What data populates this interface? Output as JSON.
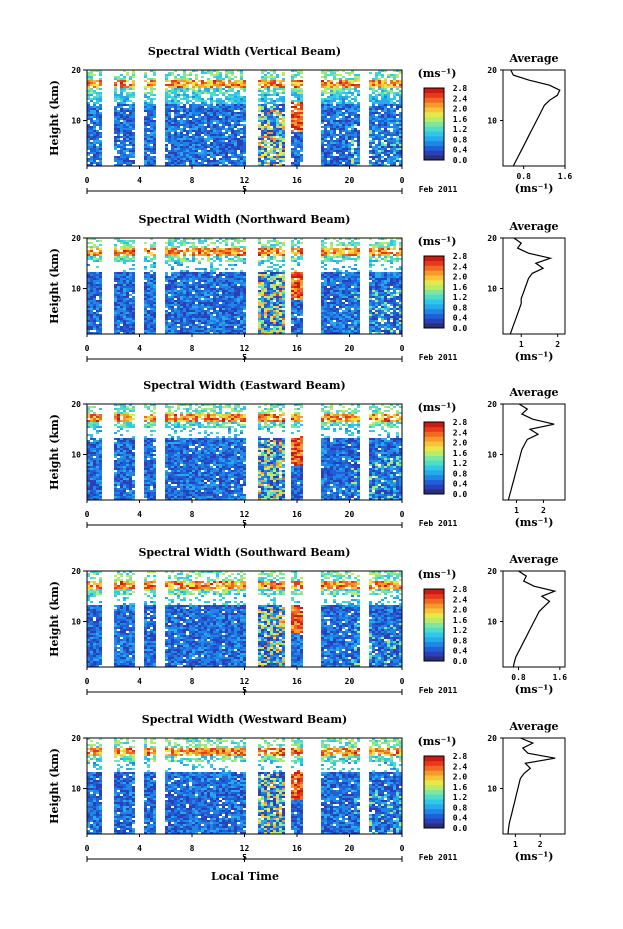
{
  "chart_data": {
    "type": "heatmap",
    "colorbar": {
      "unit": "(ms⁻¹)",
      "ticks": [
        "2.8",
        "2.4",
        "2.0",
        "1.6",
        "1.2",
        "0.8",
        "0.4",
        "0.0"
      ],
      "colors": [
        "#2a2f7a",
        "#2b3fb8",
        "#1f5fd8",
        "#1f86e6",
        "#27a9ee",
        "#2fc8e8",
        "#4fdcc8",
        "#7fe6a0",
        "#b7ec6a",
        "#e6e84a",
        "#f8c23a",
        "#f79a2c",
        "#f06a22",
        "#e63a1c",
        "#cc1a14"
      ]
    },
    "xlabel": "Local Time",
    "x_ticks": [
      "0",
      "4",
      "8",
      "12",
      "16",
      "20",
      "0"
    ],
    "date_tick": "5",
    "date_label": "Feb 2011",
    "ylabel": "Height (km)",
    "y_ticks": [
      "20",
      "10"
    ],
    "avg_title": "Average",
    "avg_xlabel": "(ms⁻¹)",
    "panels": [
      {
        "title": "Spectral Width (Vertical Beam)",
        "gaps": [
          [
            1.0,
            2.0
          ],
          [
            3.6,
            4.3
          ],
          [
            5.2,
            5.9
          ],
          [
            12.0,
            13.0
          ],
          [
            15.0,
            15.5
          ],
          [
            16.3,
            17.8
          ],
          [
            20.6,
            21.4
          ]
        ],
        "profile_x_ticks": [
          "0.8",
          "1.6"
        ],
        "profile_range": [
          0.4,
          1.6
        ],
        "profile": [
          [
            0.6,
            1
          ],
          [
            0.65,
            2
          ],
          [
            0.7,
            3
          ],
          [
            0.75,
            4
          ],
          [
            0.8,
            5
          ],
          [
            0.85,
            6
          ],
          [
            0.9,
            7
          ],
          [
            0.95,
            8
          ],
          [
            1.0,
            9
          ],
          [
            1.05,
            10
          ],
          [
            1.1,
            11
          ],
          [
            1.15,
            12
          ],
          [
            1.2,
            13
          ],
          [
            1.3,
            14
          ],
          [
            1.45,
            15
          ],
          [
            1.5,
            16
          ],
          [
            1.3,
            17
          ],
          [
            0.9,
            18
          ],
          [
            0.6,
            19
          ],
          [
            0.55,
            20
          ]
        ]
      },
      {
        "title": "Spectral Width (Northward Beam)",
        "gaps": [
          [
            1.0,
            2.0
          ],
          [
            3.6,
            4.3
          ],
          [
            5.2,
            5.9
          ],
          [
            12.0,
            13.0
          ],
          [
            15.0,
            15.5
          ],
          [
            16.3,
            17.8
          ],
          [
            20.6,
            21.4
          ]
        ],
        "profile_x_ticks": [
          "1",
          "2"
        ],
        "profile_range": [
          0.5,
          2.2
        ],
        "profile": [
          [
            0.7,
            1
          ],
          [
            0.75,
            2
          ],
          [
            0.8,
            3
          ],
          [
            0.85,
            4
          ],
          [
            0.9,
            5
          ],
          [
            0.95,
            6
          ],
          [
            1.0,
            7
          ],
          [
            1.0,
            8
          ],
          [
            1.05,
            9
          ],
          [
            1.1,
            10
          ],
          [
            1.15,
            11
          ],
          [
            1.2,
            12
          ],
          [
            1.3,
            13
          ],
          [
            1.6,
            14
          ],
          [
            1.4,
            15
          ],
          [
            1.8,
            16
          ],
          [
            1.2,
            17
          ],
          [
            0.9,
            18
          ],
          [
            1.0,
            19
          ],
          [
            0.8,
            20
          ]
        ]
      },
      {
        "title": "Spectral Width (Eastward Beam)",
        "gaps": [
          [
            1.0,
            2.0
          ],
          [
            3.6,
            4.3
          ],
          [
            5.2,
            5.9
          ],
          [
            12.0,
            13.0
          ],
          [
            15.0,
            15.5
          ],
          [
            16.3,
            17.8
          ],
          [
            20.6,
            21.4
          ]
        ],
        "profile_x_ticks": [
          "1",
          "2"
        ],
        "profile_range": [
          0.5,
          2.8
        ],
        "profile": [
          [
            0.7,
            1
          ],
          [
            0.75,
            2
          ],
          [
            0.8,
            3
          ],
          [
            0.85,
            4
          ],
          [
            0.9,
            5
          ],
          [
            0.95,
            6
          ],
          [
            1.0,
            7
          ],
          [
            1.05,
            8
          ],
          [
            1.1,
            9
          ],
          [
            1.15,
            10
          ],
          [
            1.2,
            11
          ],
          [
            1.3,
            12
          ],
          [
            1.4,
            13
          ],
          [
            1.8,
            14
          ],
          [
            1.5,
            15
          ],
          [
            2.4,
            16
          ],
          [
            1.6,
            17
          ],
          [
            1.2,
            18
          ],
          [
            1.4,
            19
          ],
          [
            1.1,
            20
          ]
        ]
      },
      {
        "title": "Spectral Width (Southward Beam)",
        "gaps": [
          [
            1.0,
            2.0
          ],
          [
            3.6,
            4.3
          ],
          [
            5.2,
            5.9
          ],
          [
            12.0,
            13.0
          ],
          [
            15.0,
            15.5
          ],
          [
            16.3,
            17.8
          ],
          [
            20.6,
            21.4
          ]
        ],
        "profile_x_ticks": [
          "0.8",
          "1.6"
        ],
        "profile_range": [
          0.5,
          1.7
        ],
        "profile": [
          [
            0.7,
            1
          ],
          [
            0.72,
            2
          ],
          [
            0.75,
            3
          ],
          [
            0.8,
            4
          ],
          [
            0.85,
            5
          ],
          [
            0.9,
            6
          ],
          [
            0.95,
            7
          ],
          [
            1.0,
            8
          ],
          [
            1.05,
            9
          ],
          [
            1.1,
            10
          ],
          [
            1.15,
            11
          ],
          [
            1.2,
            12
          ],
          [
            1.3,
            13
          ],
          [
            1.4,
            14
          ],
          [
            1.25,
            15
          ],
          [
            1.5,
            16
          ],
          [
            1.1,
            17
          ],
          [
            0.9,
            18
          ],
          [
            0.95,
            19
          ],
          [
            0.8,
            20
          ]
        ]
      },
      {
        "title": "Spectral Width (Westward Beam)",
        "gaps": [
          [
            1.0,
            2.0
          ],
          [
            3.6,
            4.3
          ],
          [
            5.2,
            5.9
          ],
          [
            12.0,
            13.0
          ],
          [
            15.0,
            15.5
          ],
          [
            16.3,
            17.8
          ],
          [
            20.6,
            21.4
          ]
        ],
        "profile_x_ticks": [
          "1",
          "2"
        ],
        "profile_range": [
          0.5,
          3.0
        ],
        "profile": [
          [
            0.7,
            1
          ],
          [
            0.72,
            2
          ],
          [
            0.75,
            3
          ],
          [
            0.8,
            4
          ],
          [
            0.85,
            5
          ],
          [
            0.9,
            6
          ],
          [
            0.95,
            7
          ],
          [
            1.0,
            8
          ],
          [
            1.05,
            9
          ],
          [
            1.1,
            10
          ],
          [
            1.15,
            11
          ],
          [
            1.2,
            12
          ],
          [
            1.35,
            13
          ],
          [
            1.6,
            14
          ],
          [
            1.4,
            15
          ],
          [
            2.6,
            16
          ],
          [
            1.5,
            17
          ],
          [
            1.3,
            18
          ],
          [
            1.7,
            19
          ],
          [
            1.2,
            20
          ]
        ]
      }
    ]
  }
}
